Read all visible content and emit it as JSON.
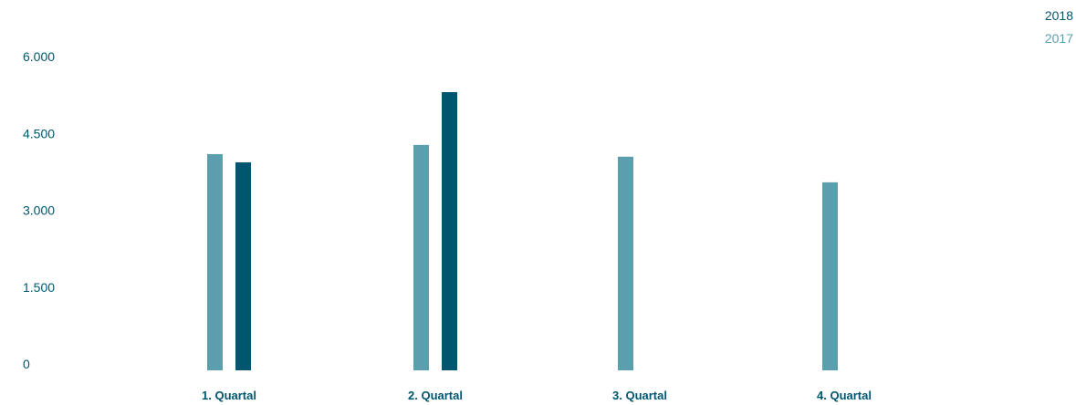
{
  "chart_data": {
    "type": "bar",
    "categories": [
      "1. Quartal",
      "2. Quartal",
      "3. Quartal",
      "4. Quartal"
    ],
    "series": [
      {
        "name": "2017",
        "color": "#5b9fae",
        "values": [
          4220,
          4400,
          4170,
          3670
        ]
      },
      {
        "name": "2018",
        "color": "#00566f",
        "values": [
          4060,
          5430,
          null,
          null
        ]
      }
    ],
    "yticks": [
      "0",
      "1.500",
      "3.000",
      "4.500",
      "6.000"
    ],
    "ytick_values": [
      0,
      1500,
      3000,
      4500,
      6000
    ],
    "ylim": [
      0,
      6000
    ],
    "grid": false,
    "legend_position": "top-right",
    "axis_text_color": "#00566f"
  }
}
